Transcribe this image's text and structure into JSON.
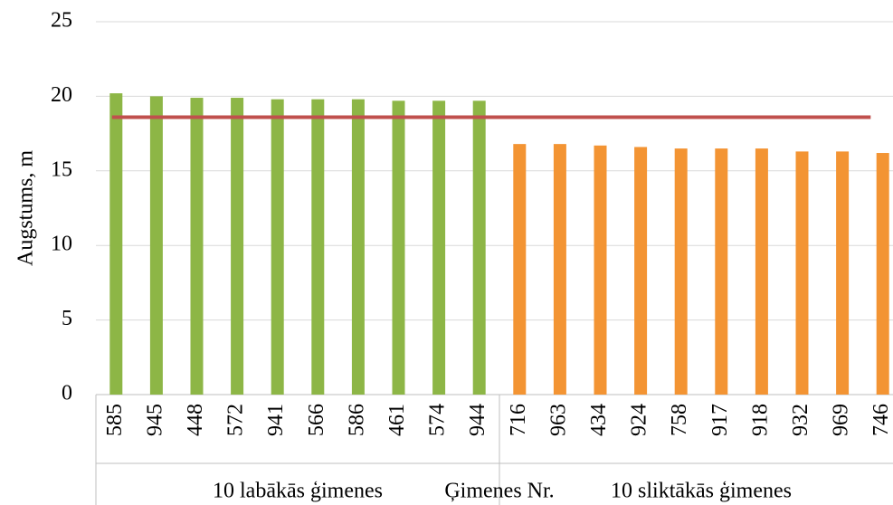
{
  "chart_data": {
    "type": "bar",
    "y_label": "Augstums, m",
    "x_label": "Ģimenes Nr.",
    "groups": [
      {
        "label": "10 labākās ģimenes",
        "color": "#8db646",
        "categories": [
          "585",
          "945",
          "448",
          "572",
          "941",
          "566",
          "586",
          "461",
          "574",
          "944"
        ],
        "values": [
          20.2,
          20.0,
          19.9,
          19.9,
          19.8,
          19.8,
          19.8,
          19.7,
          19.7,
          19.7
        ]
      },
      {
        "label": "10 sliktākās ģimenes",
        "color": "#f39433",
        "categories": [
          "716",
          "963",
          "434",
          "924",
          "758",
          "917",
          "918",
          "932",
          "969",
          "746"
        ],
        "values": [
          16.8,
          16.8,
          16.7,
          16.6,
          16.5,
          16.5,
          16.5,
          16.3,
          16.3,
          16.2
        ]
      }
    ],
    "reference_line": {
      "value": 18.6,
      "color": "#c0504d"
    },
    "ylim": [
      0,
      25
    ],
    "yticks": [
      0,
      5,
      10,
      15,
      20,
      25
    ],
    "grid": true
  }
}
